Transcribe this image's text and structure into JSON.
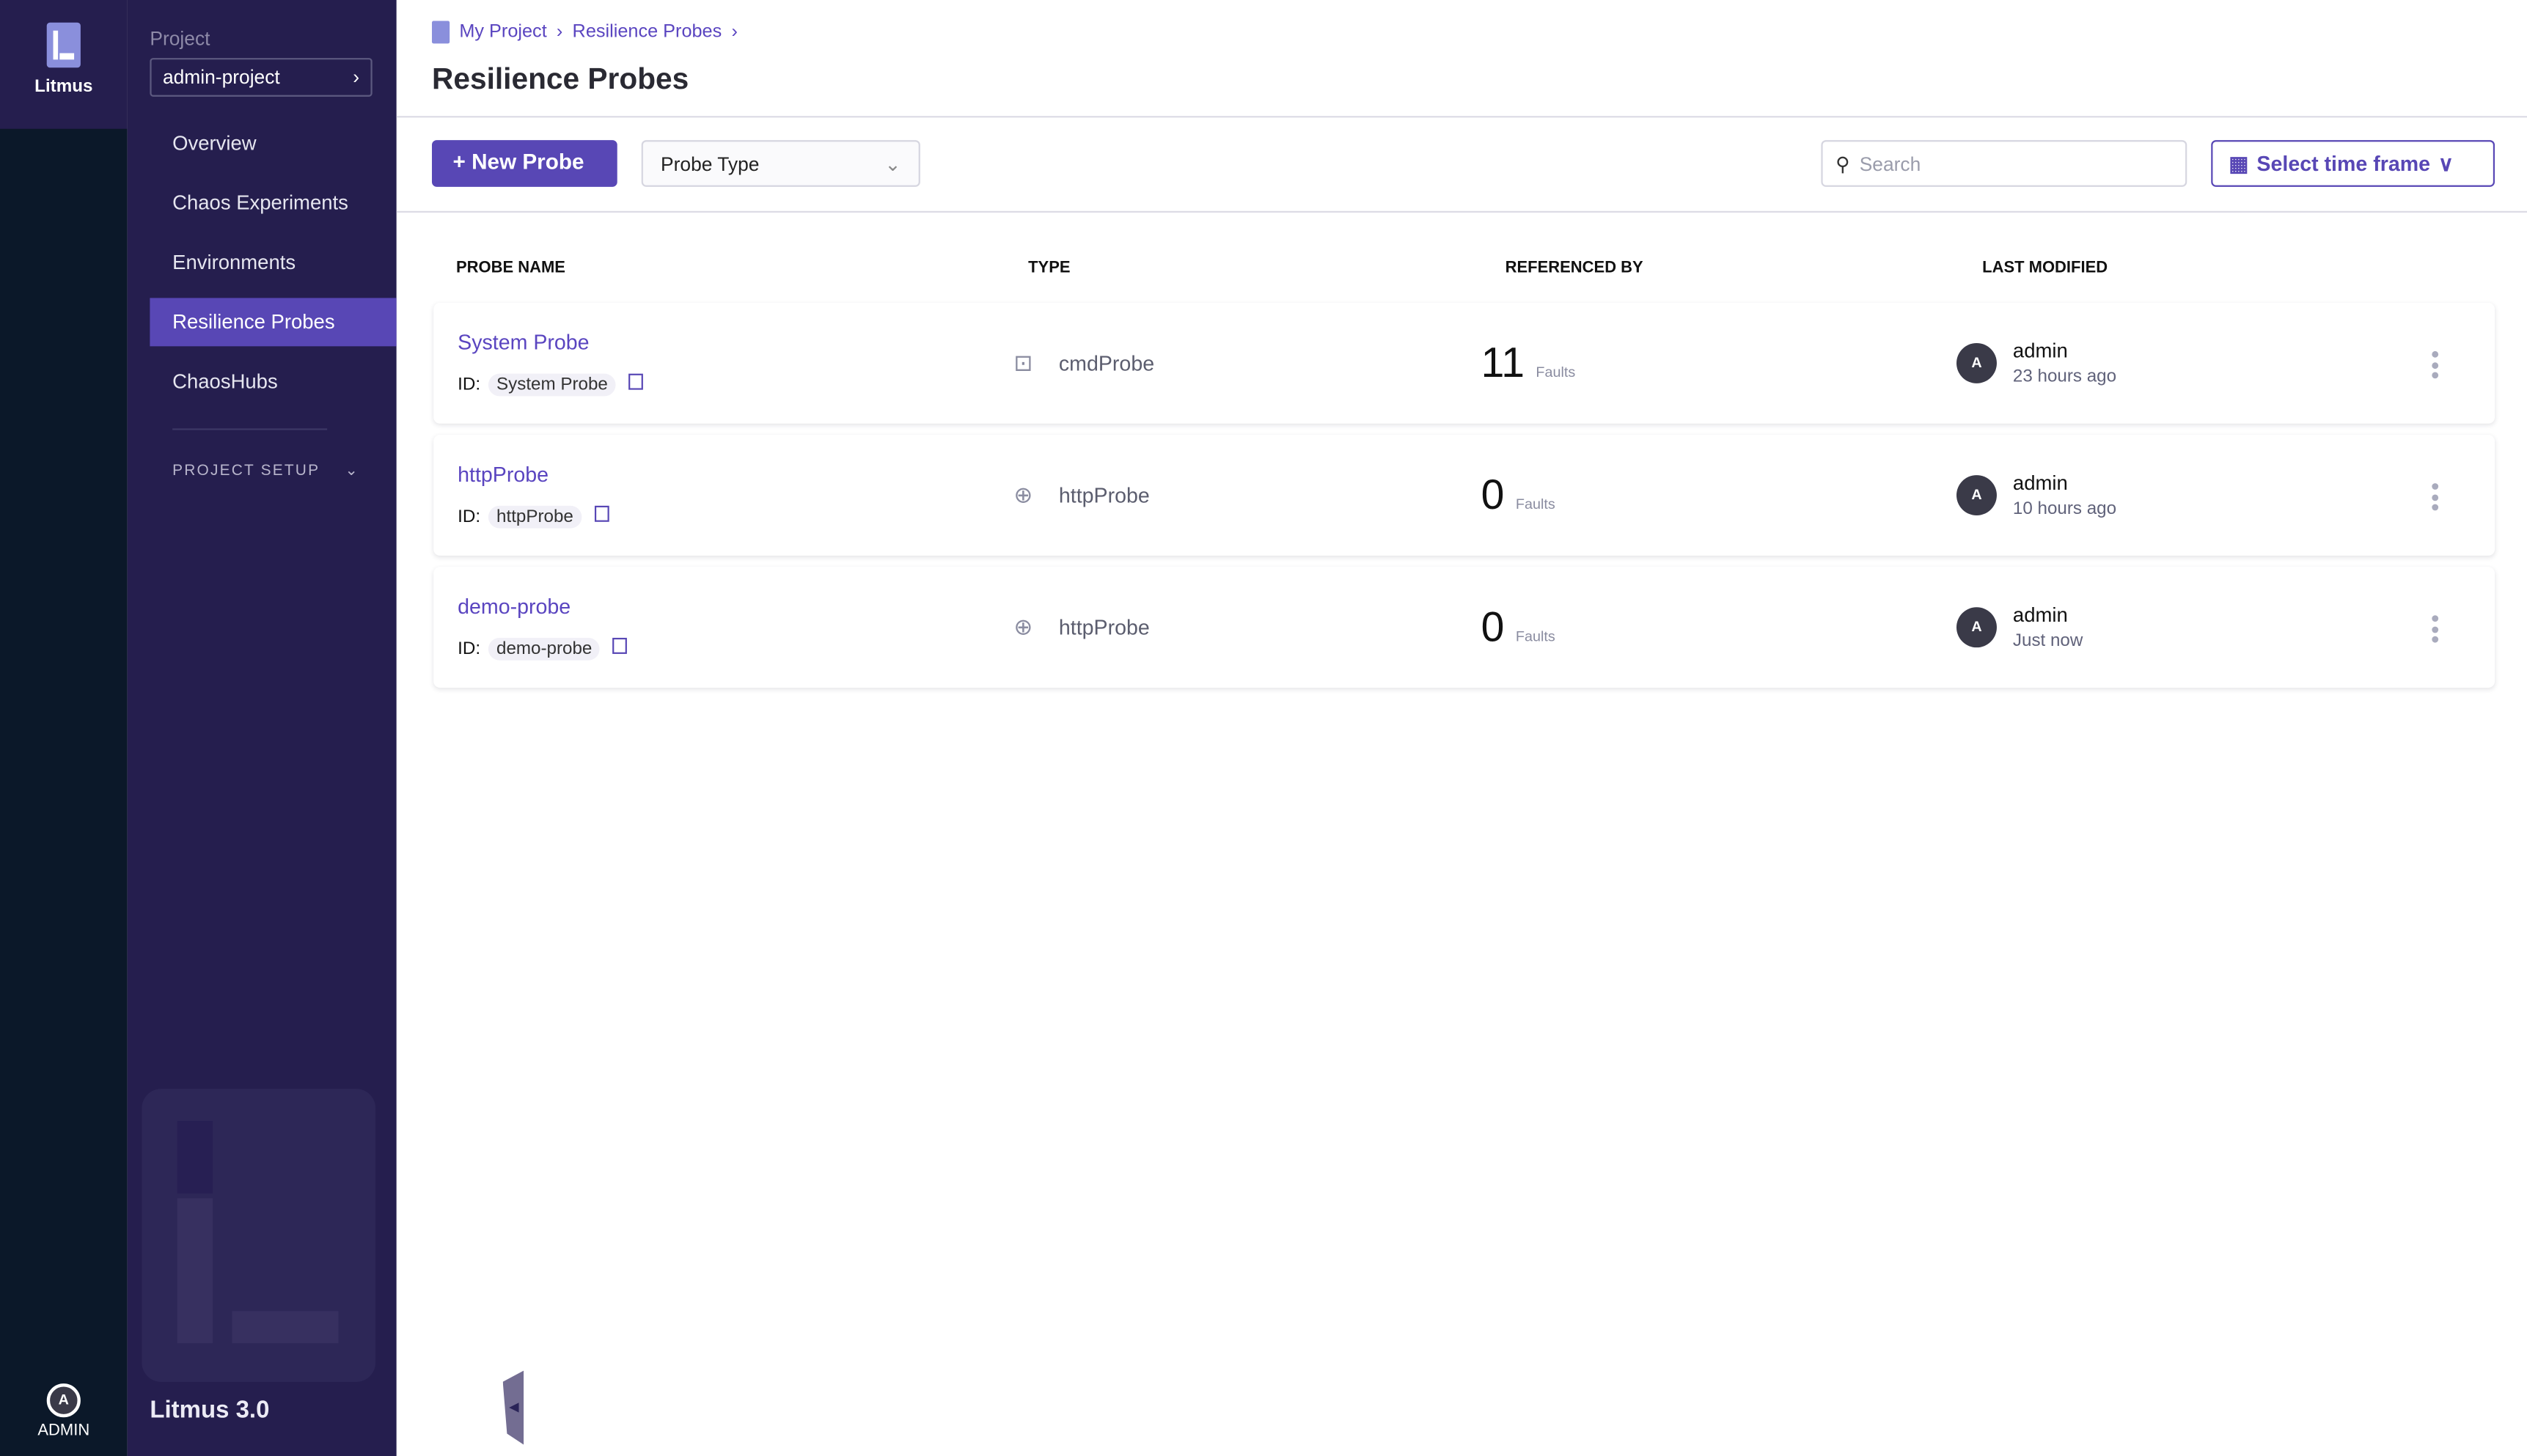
{
  "rail": {
    "app_name": "Litmus",
    "user_initial": "A",
    "user_label": "ADMIN"
  },
  "nav": {
    "project_label": "Project",
    "project_value": "admin-project",
    "items": [
      {
        "label": "Overview"
      },
      {
        "label": "Chaos Experiments"
      },
      {
        "label": "Environments"
      },
      {
        "label": "Resilience Probes",
        "active": true
      },
      {
        "label": "ChaosHubs"
      }
    ],
    "project_setup": "PROJECT SETUP",
    "version": "Litmus 3.0"
  },
  "header": {
    "breadcrumbs": [
      "My Project",
      "Resilience Probes"
    ],
    "title": "Resilience Probes"
  },
  "toolbar": {
    "new_probe": "New Probe",
    "probe_type": "Probe Type",
    "search_placeholder": "Search",
    "time_frame": "Select time frame"
  },
  "table": {
    "headers": [
      "PROBE NAME",
      "TYPE",
      "REFERENCED BY",
      "LAST MODIFIED"
    ],
    "id_label": "ID:",
    "faults_label": "Faults",
    "rows": [
      {
        "name": "System Probe",
        "id": "System Probe",
        "type": "cmdProbe",
        "type_icon": "terminal-icon",
        "refs": "11",
        "user": "admin",
        "initial": "A",
        "time": "23 hours ago"
      },
      {
        "name": "httpProbe",
        "id": "httpProbe",
        "type": "httpProbe",
        "type_icon": "globe-icon",
        "refs": "0",
        "user": "admin",
        "initial": "A",
        "time": "10 hours ago"
      },
      {
        "name": "demo-probe",
        "id": "demo-probe",
        "type": "httpProbe",
        "type_icon": "globe-icon",
        "refs": "0",
        "user": "admin",
        "initial": "A",
        "time": "Just now"
      }
    ]
  },
  "colors": {
    "accent": "#5847b5",
    "nav_bg": "#251e4e",
    "rail_bg": "#0b1829"
  }
}
